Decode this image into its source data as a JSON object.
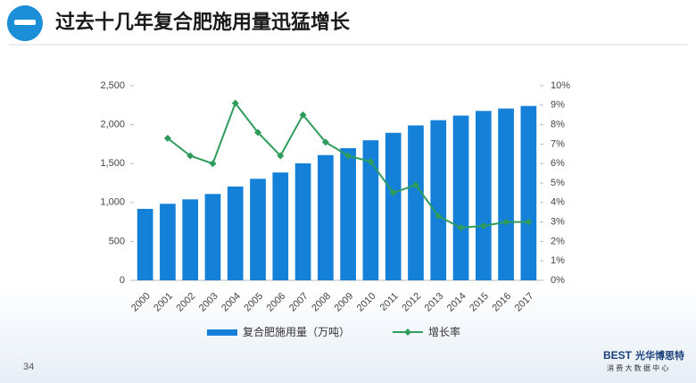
{
  "slide": {
    "title": "过去十几年复合肥施用量迅猛增长",
    "page_number": "34",
    "logo_brand": "BEST",
    "logo_name": "光华博思特",
    "logo_subtitle": "消 费 大 数 据 中 心"
  },
  "chart_data": {
    "type": "bar",
    "categories": [
      "2000",
      "2001",
      "2002",
      "2003",
      "2004",
      "2005",
      "2006",
      "2007",
      "2008",
      "2009",
      "2010",
      "2011",
      "2012",
      "2013",
      "2014",
      "2015",
      "2016",
      "2017"
    ],
    "series": [
      {
        "name": "复合肥施用量（万吨）",
        "type": "bar",
        "color": "#1480d8",
        "values": [
          918,
          983,
          1040,
          1109,
          1205,
          1304,
          1385,
          1503,
          1609,
          1698,
          1799,
          1895,
          1990,
          2057,
          2116,
          2176,
          2207,
          2240
        ]
      },
      {
        "name": "增长率",
        "type": "line",
        "axis": "y2",
        "color": "#2e9c5c",
        "values": [
          null,
          7.3,
          6.4,
          6.0,
          9.1,
          7.6,
          6.4,
          8.5,
          7.1,
          6.4,
          6.1,
          4.5,
          4.9,
          3.3,
          2.7,
          2.8,
          3.0,
          3.0
        ]
      }
    ],
    "ylim": [
      0,
      2500
    ],
    "yticks": [
      0,
      500,
      {
        "value": 1000,
        "label": "1,000"
      },
      {
        "value": 1500,
        "label": "1,500"
      },
      {
        "value": 2000,
        "label": "2,000"
      },
      {
        "value": 2500,
        "label": "2,500"
      }
    ],
    "y2lim": [
      0,
      10
    ],
    "y2ticks": [
      {
        "value": 0,
        "label": "0%"
      },
      {
        "value": 1,
        "label": "1%"
      },
      {
        "value": 2,
        "label": "2%"
      },
      {
        "value": 3,
        "label": "3%"
      },
      {
        "value": 4,
        "label": "4%"
      },
      {
        "value": 5,
        "label": "5%"
      },
      {
        "value": 6,
        "label": "6%"
      },
      {
        "value": 7,
        "label": "7%"
      },
      {
        "value": 8,
        "label": "8%"
      },
      {
        "value": 9,
        "label": "9%"
      },
      {
        "value": 10,
        "label": "10%"
      }
    ],
    "grid": false,
    "legend": "bottom"
  }
}
